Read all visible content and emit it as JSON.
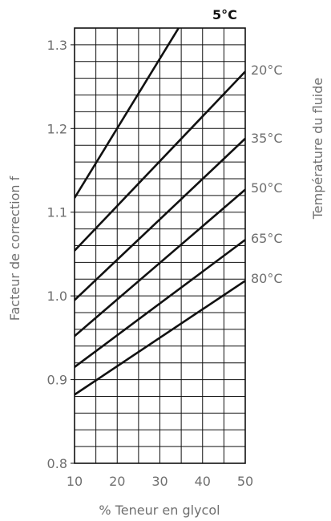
{
  "chart_data": {
    "type": "line",
    "xlabel": "% Teneur en glycol",
    "ylabel": "Facteur de correction f",
    "legend_title": "Température du fluide",
    "xlim": [
      10,
      50
    ],
    "ylim": [
      0.8,
      1.32
    ],
    "xticks": [
      "10",
      "20",
      "30",
      "40",
      "50"
    ],
    "yticks": [
      "0.8",
      "0.9",
      "1.0",
      "1.1",
      "1.2",
      "1.3"
    ],
    "grid": true,
    "series": [
      {
        "name": "5°C",
        "x": [
          10,
          50
        ],
        "y": [
          1.117,
          1.45
        ]
      },
      {
        "name": "20°C",
        "x": [
          10,
          50
        ],
        "y": [
          1.054,
          1.268
        ]
      },
      {
        "name": "35°C",
        "x": [
          10,
          50
        ],
        "y": [
          0.995,
          1.188
        ]
      },
      {
        "name": "50°C",
        "x": [
          10,
          50
        ],
        "y": [
          0.952,
          1.127
        ]
      },
      {
        "name": "65°C",
        "x": [
          10,
          50
        ],
        "y": [
          0.915,
          1.067
        ]
      },
      {
        "name": "80°C",
        "x": [
          10,
          50
        ],
        "y": [
          0.882,
          1.018
        ]
      }
    ]
  }
}
